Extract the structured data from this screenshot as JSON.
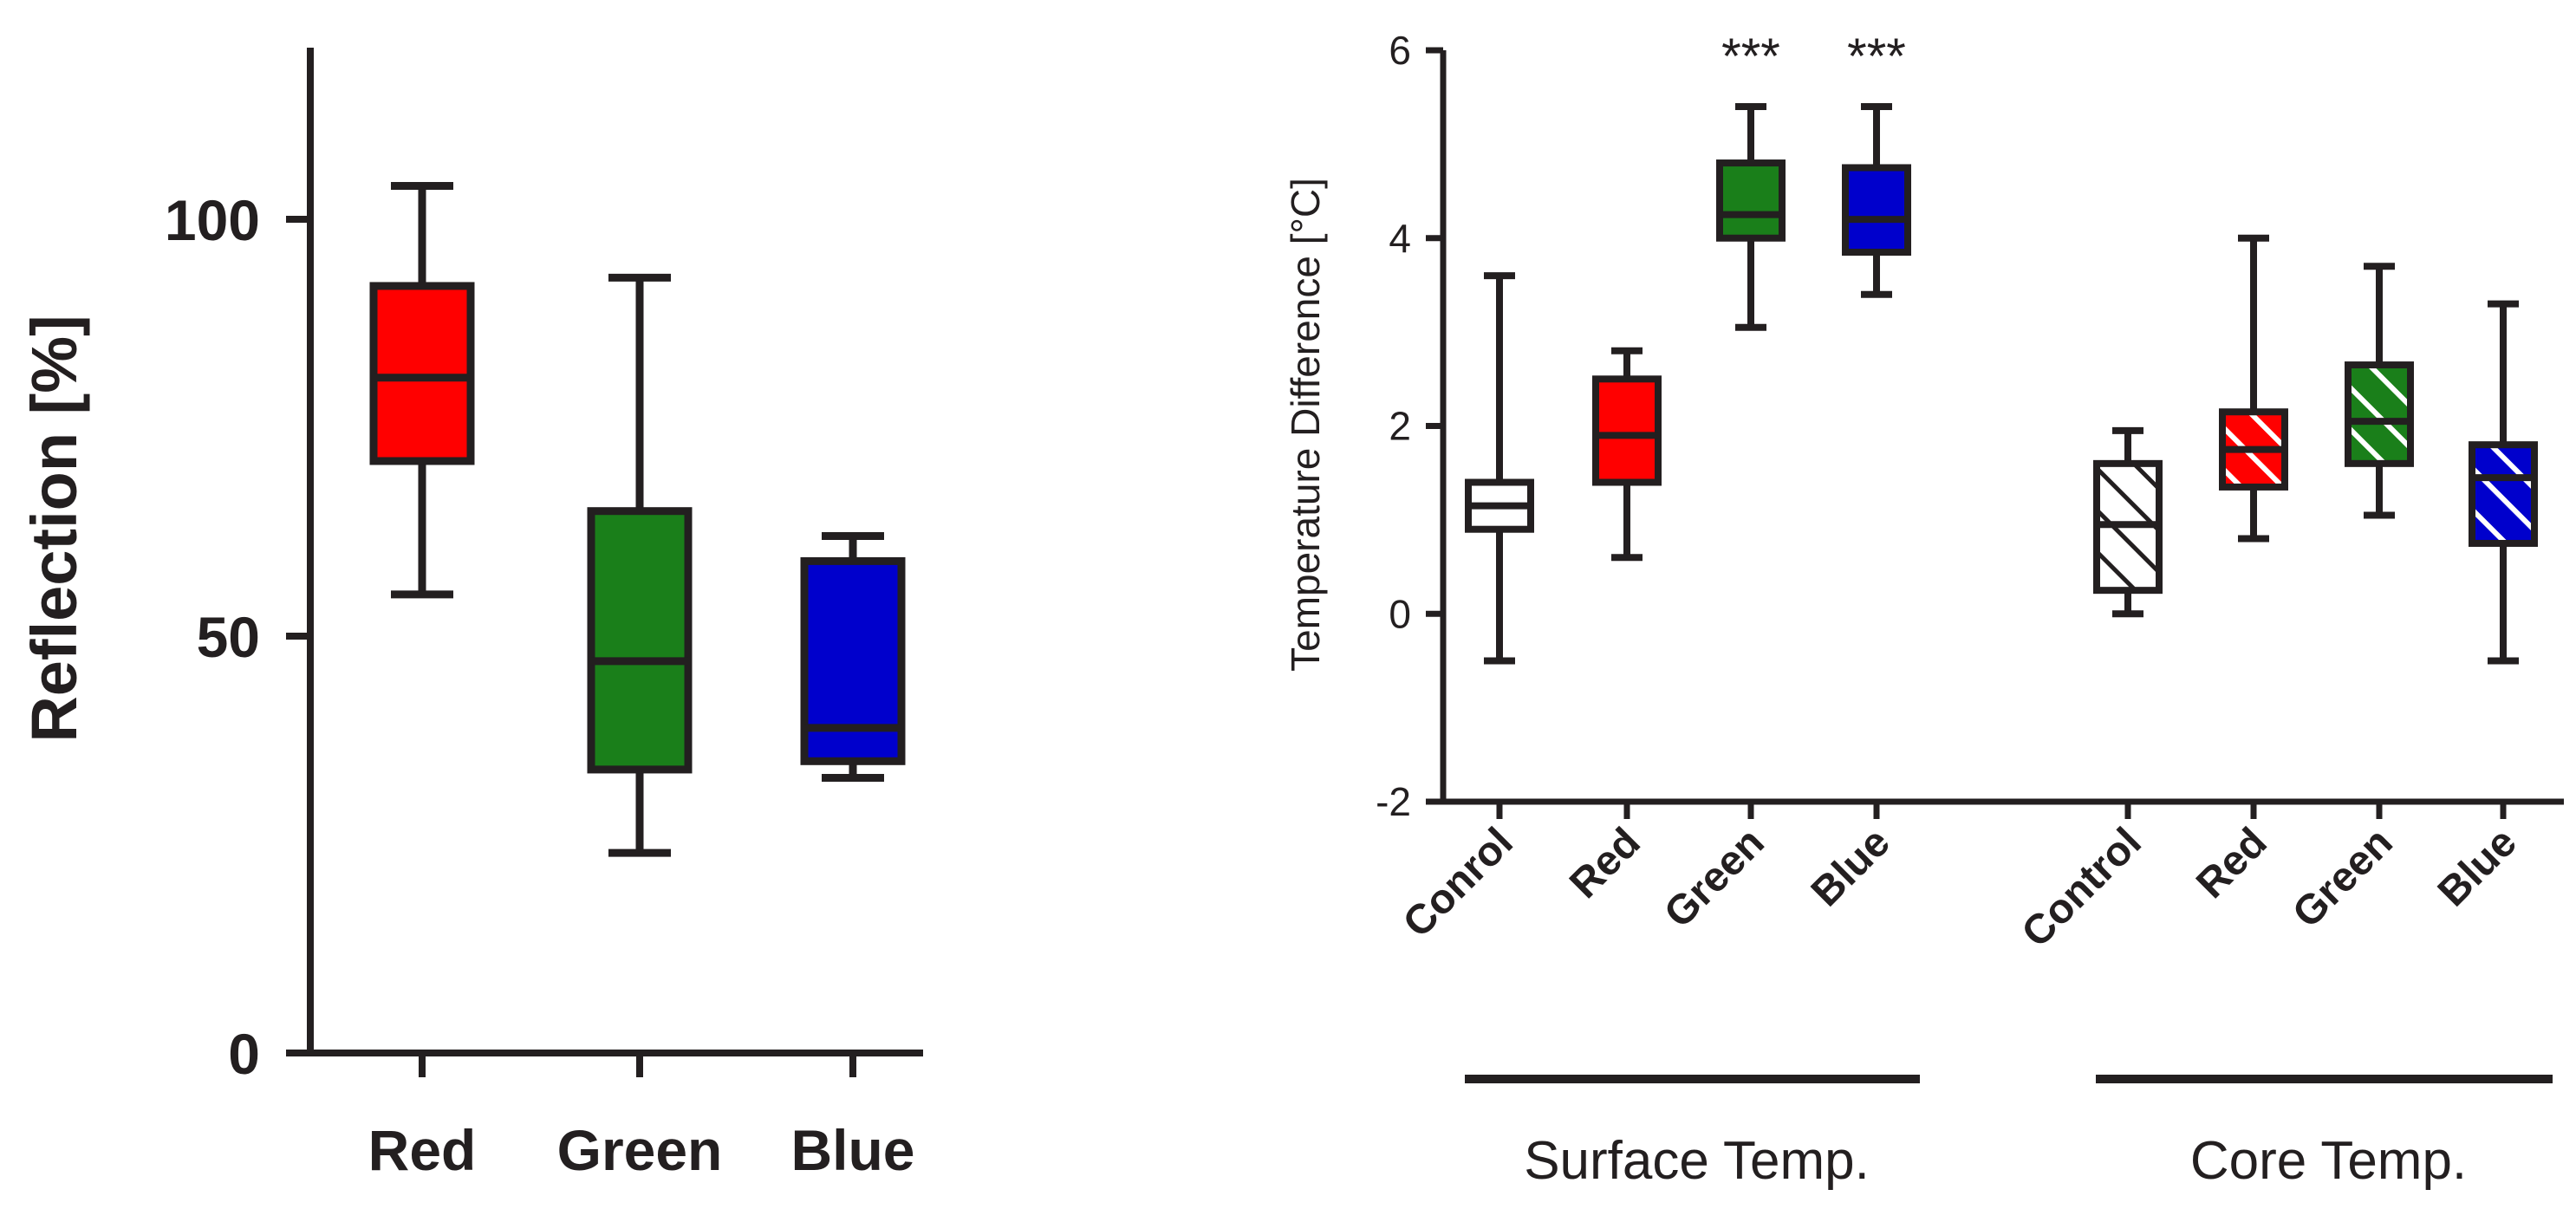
{
  "chart_data": [
    {
      "type": "box",
      "ylabel": "Reflection [%]",
      "ylim": [
        0,
        120
      ],
      "yticks": [
        0,
        50,
        100
      ],
      "categories": [
        "Red",
        "Green",
        "Blue"
      ],
      "colors": [
        "#ff0000",
        "#1a7f1a",
        "#0000cc"
      ],
      "boxes": [
        {
          "category": "Red",
          "min": 55,
          "q1": 71,
          "median": 81,
          "q3": 92,
          "max": 104
        },
        {
          "category": "Green",
          "min": 24,
          "q1": 34,
          "median": 47,
          "q3": 65,
          "max": 93
        },
        {
          "category": "Blue",
          "min": 33,
          "q1": 35,
          "median": 39,
          "q3": 59,
          "max": 62
        }
      ]
    },
    {
      "type": "box",
      "ylabel": "Temperature Difference [°C]",
      "ylim": [
        -2,
        6
      ],
      "yticks": [
        -2,
        0,
        2,
        4,
        6
      ],
      "categories": [
        "Conrol",
        "Red",
        "Green",
        "Blue",
        "Control",
        "Red",
        "Green",
        "Blue"
      ],
      "groups": [
        {
          "label": "Surface Temp.",
          "hatched": false
        },
        {
          "label": "Core Temp.",
          "hatched": true
        }
      ],
      "boxes": [
        {
          "category": "Conrol",
          "group": "Surface Temp.",
          "color": "#ffffff",
          "min": -0.5,
          "q1": 0.9,
          "median": 1.15,
          "q3": 1.4,
          "max": 3.6,
          "annotation": ""
        },
        {
          "category": "Red",
          "group": "Surface Temp.",
          "color": "#ff0000",
          "min": 0.6,
          "q1": 1.4,
          "median": 1.9,
          "q3": 2.5,
          "max": 2.8,
          "annotation": ""
        },
        {
          "category": "Green",
          "group": "Surface Temp.",
          "color": "#1a7f1a",
          "min": 3.05,
          "q1": 4.0,
          "median": 4.25,
          "q3": 4.8,
          "max": 5.4,
          "annotation": "***"
        },
        {
          "category": "Blue",
          "group": "Surface Temp.",
          "color": "#0000cc",
          "min": 3.4,
          "q1": 3.85,
          "median": 4.2,
          "q3": 4.75,
          "max": 5.4,
          "annotation": "***"
        },
        {
          "category": "Control",
          "group": "Core Temp.",
          "color": "#ffffff",
          "min": 0.0,
          "q1": 0.25,
          "median": 0.95,
          "q3": 1.6,
          "max": 1.95,
          "annotation": ""
        },
        {
          "category": "Red",
          "group": "Core Temp.",
          "color": "#ff0000",
          "min": 0.8,
          "q1": 1.35,
          "median": 1.75,
          "q3": 2.15,
          "max": 4.0,
          "annotation": ""
        },
        {
          "category": "Green",
          "group": "Core Temp.",
          "color": "#1a7f1a",
          "min": 1.05,
          "q1": 1.6,
          "median": 2.05,
          "q3": 2.65,
          "max": 3.7,
          "annotation": ""
        },
        {
          "category": "Blue",
          "group": "Core Temp.",
          "color": "#0000cc",
          "min": -0.5,
          "q1": 0.75,
          "median": 1.45,
          "q3": 1.8,
          "max": 3.3,
          "annotation": ""
        }
      ]
    }
  ]
}
